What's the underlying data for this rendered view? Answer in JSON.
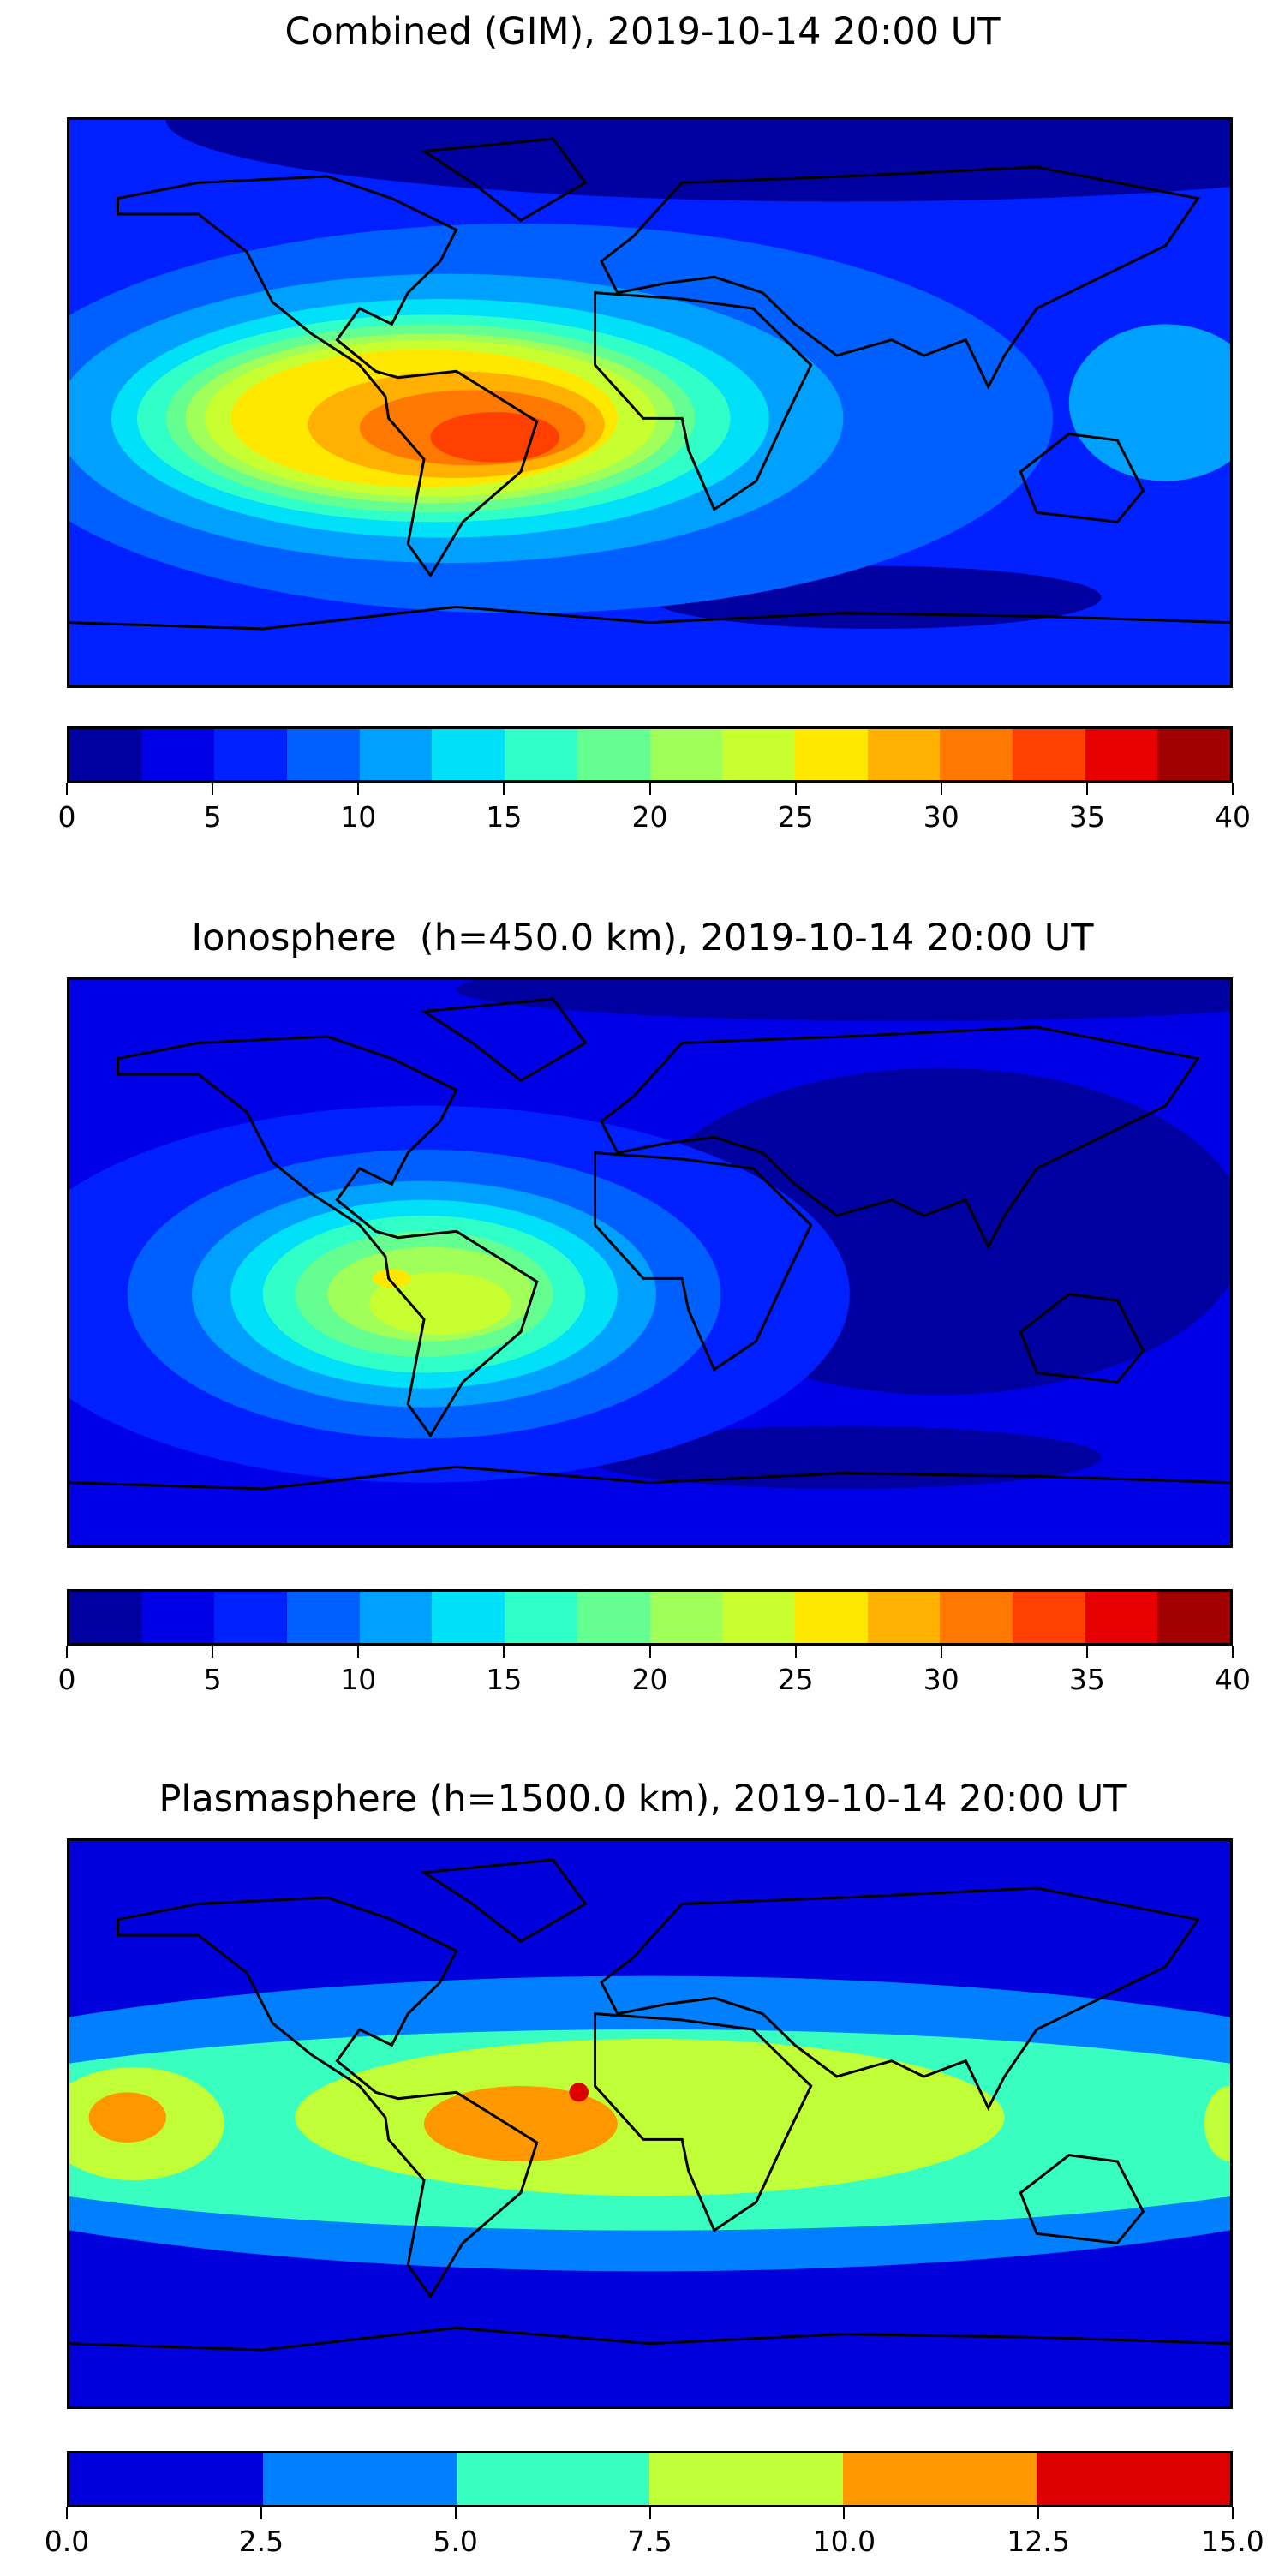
{
  "chart_data": [
    {
      "type": "heatmap",
      "title": "Combined (GIM), 2019-10-14 20:00 UT",
      "colorbar": {
        "range": [
          0,
          40
        ],
        "levels": [
          0,
          2.5,
          5,
          7.5,
          10,
          12.5,
          15,
          17.5,
          20,
          22.5,
          25,
          27.5,
          30,
          32.5,
          35,
          37.5,
          40
        ],
        "colors": [
          "#0000a0",
          "#0000e6",
          "#0020ff",
          "#0060ff",
          "#00a0ff",
          "#00e0f8",
          "#30ffc8",
          "#64ff90",
          "#a0ff58",
          "#c8ff30",
          "#ffe800",
          "#ffb000",
          "#ff7800",
          "#ff4000",
          "#e60000",
          "#a00000"
        ],
        "ticks": [
          "0",
          "5",
          "10",
          "15",
          "20",
          "25",
          "30",
          "35",
          "40"
        ]
      },
      "max_region": "South America",
      "max_level_range": [
        32.5,
        35
      ]
    },
    {
      "type": "heatmap",
      "title": "Ionosphere  (h=450.0 km), 2019-10-14 20:00 UT",
      "colorbar": {
        "range": [
          0,
          40
        ],
        "levels": [
          0,
          2.5,
          5,
          7.5,
          10,
          12.5,
          15,
          17.5,
          20,
          22.5,
          25,
          27.5,
          30,
          32.5,
          35,
          37.5,
          40
        ],
        "colors": [
          "#0000a0",
          "#0000e6",
          "#0020ff",
          "#0060ff",
          "#00a0ff",
          "#00e0f8",
          "#30ffc8",
          "#64ff90",
          "#a0ff58",
          "#c8ff30",
          "#ffe800",
          "#ffb000",
          "#ff7800",
          "#ff4000",
          "#e60000",
          "#a00000"
        ],
        "ticks": [
          "0",
          "5",
          "10",
          "15",
          "20",
          "25",
          "30",
          "35",
          "40"
        ]
      },
      "max_region": "northern South America",
      "max_level_range": [
        25,
        27.5
      ]
    },
    {
      "type": "heatmap",
      "title": "Plasmasphere (h=1500.0 km), 2019-10-14 20:00 UT",
      "colorbar": {
        "range": [
          0,
          15
        ],
        "levels": [
          0,
          2.5,
          5,
          7.5,
          10,
          12.5,
          15
        ],
        "colors": [
          "#0000dd",
          "#0080ff",
          "#38ffc0",
          "#c0ff38",
          "#ff9800",
          "#dd0000"
        ],
        "ticks": [
          "0.0",
          "2.5",
          "5.0",
          "7.5",
          "10.0",
          "12.5",
          "15.0"
        ]
      },
      "max_region": "equatorial Atlantic",
      "max_level_range": [
        12.5,
        15
      ]
    }
  ]
}
